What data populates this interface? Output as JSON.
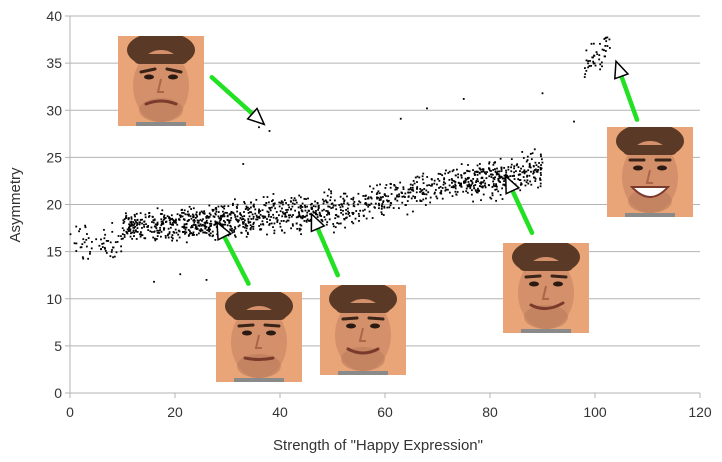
{
  "chart_data": {
    "type": "scatter",
    "title": "",
    "xlabel": "Strength of \"Happy Expression\"",
    "ylabel": "Asymmetry",
    "xlim": [
      0,
      120
    ],
    "ylim": [
      0,
      40
    ],
    "x_ticks": [
      "0",
      "20",
      "40",
      "60",
      "80",
      "100",
      "120"
    ],
    "y_ticks": [
      "0",
      "5",
      "10",
      "15",
      "20",
      "25",
      "30",
      "35",
      "40"
    ],
    "grid": "horizontal",
    "point_color": "#000000",
    "clusters": [
      {
        "x_range": [
          0,
          10
        ],
        "y_center_at_start": 15.8,
        "slope": 0.0,
        "spread": 1.6,
        "count": 60
      },
      {
        "x_range": [
          10,
          30
        ],
        "y_center_at_start": 17.5,
        "slope": 0.04,
        "spread": 1.2,
        "count": 420
      },
      {
        "x_range": [
          30,
          50
        ],
        "y_center_at_start": 18.3,
        "slope": 0.06,
        "spread": 1.5,
        "count": 380
      },
      {
        "x_range": [
          50,
          75
        ],
        "y_center_at_start": 19.2,
        "slope": 0.14,
        "spread": 1.4,
        "count": 320
      },
      {
        "x_range": [
          75,
          90
        ],
        "y_center_at_start": 22.2,
        "slope": 0.1,
        "spread": 1.5,
        "count": 300
      },
      {
        "x_range": [
          98,
          103
        ],
        "y_center_at_start": 34.5,
        "slope": 0.5,
        "spread": 1.3,
        "count": 45
      }
    ],
    "outliers": [
      {
        "x": 36,
        "y": 28.2
      },
      {
        "x": 38,
        "y": 27.8
      },
      {
        "x": 68,
        "y": 30.2
      },
      {
        "x": 75,
        "y": 31.2
      },
      {
        "x": 90,
        "y": 31.8
      },
      {
        "x": 96,
        "y": 28.8
      },
      {
        "x": 33,
        "y": 24.3
      },
      {
        "x": 21,
        "y": 12.6
      },
      {
        "x": 16,
        "y": 11.8
      },
      {
        "x": 26,
        "y": 12.0
      },
      {
        "x": 63,
        "y": 29.1
      }
    ],
    "arrows": [
      {
        "name": "arrow-1",
        "tip": [
          37,
          28.5
        ],
        "tail": [
          27,
          33.5
        ]
      },
      {
        "name": "arrow-2",
        "tip": [
          28,
          18.1
        ],
        "tail": [
          34,
          11.6
        ]
      },
      {
        "name": "arrow-3",
        "tip": [
          46,
          19.0
        ],
        "tail": [
          51,
          12.5
        ]
      },
      {
        "name": "arrow-4",
        "tip": [
          83,
          23.0
        ],
        "tail": [
          88,
          17.0
        ]
      },
      {
        "name": "arrow-5",
        "tip": [
          104,
          35.2
        ],
        "tail": [
          108,
          29.0
        ]
      }
    ],
    "arrow_color": "#22e022"
  },
  "faces": [
    {
      "name": "face-photo-1",
      "expression": "sad"
    },
    {
      "name": "face-photo-2",
      "expression": "neutral"
    },
    {
      "name": "face-photo-3",
      "expression": "slight-smile"
    },
    {
      "name": "face-photo-4",
      "expression": "smirk"
    },
    {
      "name": "face-photo-5",
      "expression": "big-smile"
    }
  ]
}
